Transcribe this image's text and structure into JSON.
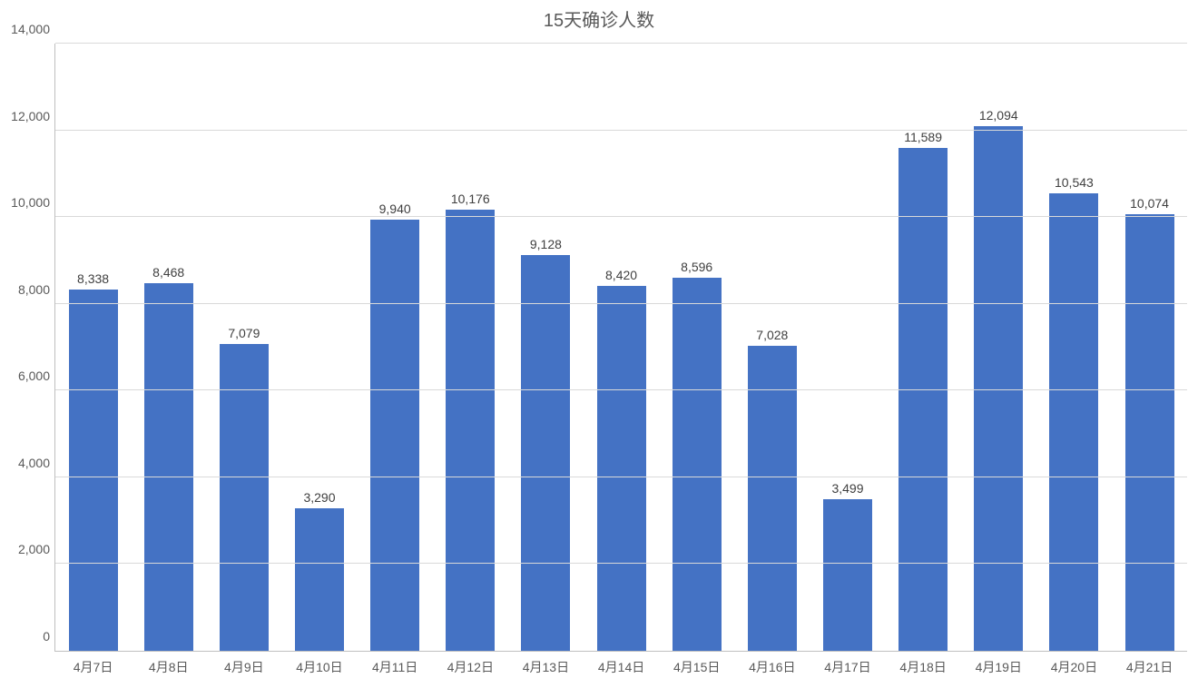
{
  "chart": {
    "type": "bar",
    "title": "15天确诊人数",
    "title_fontsize": 20,
    "title_color": "#595959",
    "background_color": "#ffffff",
    "axis_color": "#bfbfbf",
    "grid_color": "#d9d9d9",
    "tick_color": "#595959",
    "tick_fontsize": 14,
    "xlabel_fontsize": 14,
    "value_label_fontsize": 14,
    "value_label_color": "#404040",
    "bar_color": "#4472c4",
    "bar_width_pct": 65,
    "ylim": [
      0,
      14000
    ],
    "ytick_step": 2000,
    "ytick_labels": [
      "0",
      "2,000",
      "4,000",
      "6,000",
      "8,000",
      "10,000",
      "12,000",
      "14,000"
    ],
    "categories": [
      "4月7日",
      "4月8日",
      "4月9日",
      "4月10日",
      "4月11日",
      "4月12日",
      "4月13日",
      "4月14日",
      "4月15日",
      "4月16日",
      "4月17日",
      "4月18日",
      "4月19日",
      "4月20日",
      "4月21日"
    ],
    "values": [
      8338,
      8468,
      7079,
      3290,
      9940,
      10176,
      9128,
      8420,
      8596,
      7028,
      3499,
      11589,
      12094,
      10543,
      10074
    ],
    "value_labels": [
      "8,338",
      "8,468",
      "7,079",
      "3,290",
      "9,940",
      "10,176",
      "9,128",
      "8,420",
      "8,596",
      "7,028",
      "3,499",
      "11,589",
      "12,094",
      "10,543",
      "10,074"
    ]
  }
}
